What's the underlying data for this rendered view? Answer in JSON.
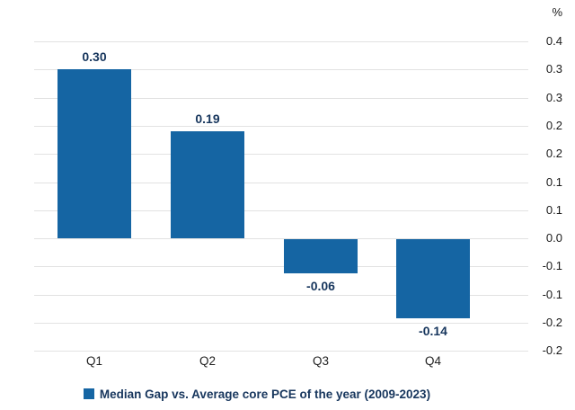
{
  "chart_data": {
    "type": "bar",
    "title": "",
    "unit_label": "%",
    "categories": [
      "Q1",
      "Q2",
      "Q3",
      "Q4"
    ],
    "values": [
      0.3,
      0.19,
      -0.06,
      -0.14
    ],
    "value_labels": [
      "0.30",
      "0.19",
      "-0.06",
      "-0.14"
    ],
    "y_ticks": [
      {
        "value": 0.35,
        "label": "0.4"
      },
      {
        "value": 0.3,
        "label": "0.3"
      },
      {
        "value": 0.25,
        "label": "0.3"
      },
      {
        "value": 0.2,
        "label": "0.2"
      },
      {
        "value": 0.15,
        "label": "0.2"
      },
      {
        "value": 0.1,
        "label": "0.1"
      },
      {
        "value": 0.05,
        "label": "0.1"
      },
      {
        "value": 0.0,
        "label": "0.0"
      },
      {
        "value": -0.05,
        "label": "-0.1"
      },
      {
        "value": -0.1,
        "label": "-0.1"
      },
      {
        "value": -0.15,
        "label": "-0.2"
      },
      {
        "value": -0.2,
        "label": "-0.2"
      }
    ],
    "ylim": [
      -0.2,
      0.35
    ],
    "grid": true,
    "legend": {
      "label": "Median Gap vs. Average core PCE of the year (2009-2023)",
      "position": "bottom"
    },
    "colors": {
      "bar": "#1565A3",
      "value_label": "#17365D",
      "grid": "#E2E2E2",
      "tick_label": "#1A1A1A",
      "background": "#FFFFFF"
    }
  }
}
